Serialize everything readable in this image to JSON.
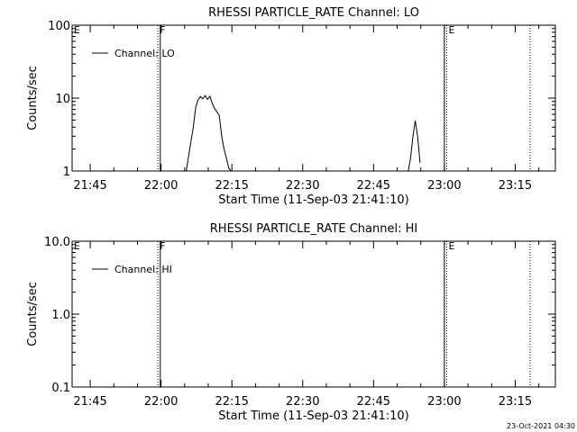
{
  "footer": {
    "timestamp": "23-Oct-2021 04:30"
  },
  "chart_data": [
    {
      "type": "line",
      "title": "RHESSI PARTICLE_RATE Channel: LO",
      "xlabel": "Start Time (11-Sep-03 21:41:10)",
      "ylabel": "Counts/sec",
      "yscale": "log",
      "ylim": [
        1,
        100
      ],
      "xlim": [
        "21:41:10",
        "23:23:30"
      ],
      "xticks": [
        "21:45",
        "22:00",
        "22:15",
        "22:30",
        "22:45",
        "23:00",
        "23:15"
      ],
      "yticks": [
        "1",
        "10",
        "100"
      ],
      "legend": {
        "entries": [
          "Channel: LO"
        ],
        "placement": "top-left"
      },
      "markers": [
        {
          "label": "E",
          "time": "21:41:10",
          "style": "dotted"
        },
        {
          "label": "F",
          "time": "21:59:20",
          "style": "dotted"
        },
        {
          "label": "",
          "time": "21:59:50",
          "style": "solid"
        },
        {
          "label": "",
          "time": "23:00:00",
          "style": "solid"
        },
        {
          "label": "E",
          "time": "23:00:30",
          "style": "dotted"
        },
        {
          "label": "",
          "time": "23:18:10",
          "style": "dotted"
        }
      ],
      "series": [
        {
          "name": "Channel: LO",
          "x": [
            "22:05:20",
            "22:05:50",
            "22:06:50",
            "22:07:20",
            "22:07:50",
            "22:08:20",
            "22:08:50",
            "22:09:20",
            "22:09:50",
            "22:10:20",
            "22:10:50",
            "22:11:20",
            "22:11:50",
            "22:12:20",
            "22:12:50",
            "22:13:20",
            "22:13:50",
            "22:14:20",
            "22:14:50",
            "22:52:20",
            "22:52:50",
            "22:53:20",
            "22:53:50",
            "22:54:20",
            "22:54:50"
          ],
          "y": [
            1.0,
            1.6,
            4.0,
            7.5,
            9.5,
            10.5,
            9.8,
            10.8,
            9.6,
            10.6,
            8.5,
            7.2,
            6.5,
            5.8,
            3.0,
            2.0,
            1.5,
            1.1,
            1.0,
            1.0,
            1.5,
            3.0,
            4.9,
            3.0,
            1.3
          ]
        }
      ]
    },
    {
      "type": "line",
      "title": "RHESSI PARTICLE_RATE Channel: HI",
      "xlabel": "Start Time (11-Sep-03 21:41:10)",
      "ylabel": "Counts/sec",
      "yscale": "log",
      "ylim": [
        0.1,
        10.0
      ],
      "xlim": [
        "21:41:10",
        "23:23:30"
      ],
      "xticks": [
        "21:45",
        "22:00",
        "22:15",
        "22:30",
        "22:45",
        "23:00",
        "23:15"
      ],
      "yticks": [
        "0.1",
        "1.0",
        "10.0"
      ],
      "legend": {
        "entries": [
          "Channel: HI"
        ],
        "placement": "top-left"
      },
      "markers": [
        {
          "label": "E",
          "time": "21:41:10",
          "style": "dotted"
        },
        {
          "label": "F",
          "time": "21:59:20",
          "style": "dotted"
        },
        {
          "label": "",
          "time": "21:59:50",
          "style": "solid"
        },
        {
          "label": "",
          "time": "23:00:00",
          "style": "solid"
        },
        {
          "label": "E",
          "time": "23:00:30",
          "style": "dotted"
        },
        {
          "label": "",
          "time": "23:18:10",
          "style": "dotted"
        }
      ],
      "series": [
        {
          "name": "Channel: HI",
          "x": [],
          "y": []
        }
      ]
    }
  ]
}
